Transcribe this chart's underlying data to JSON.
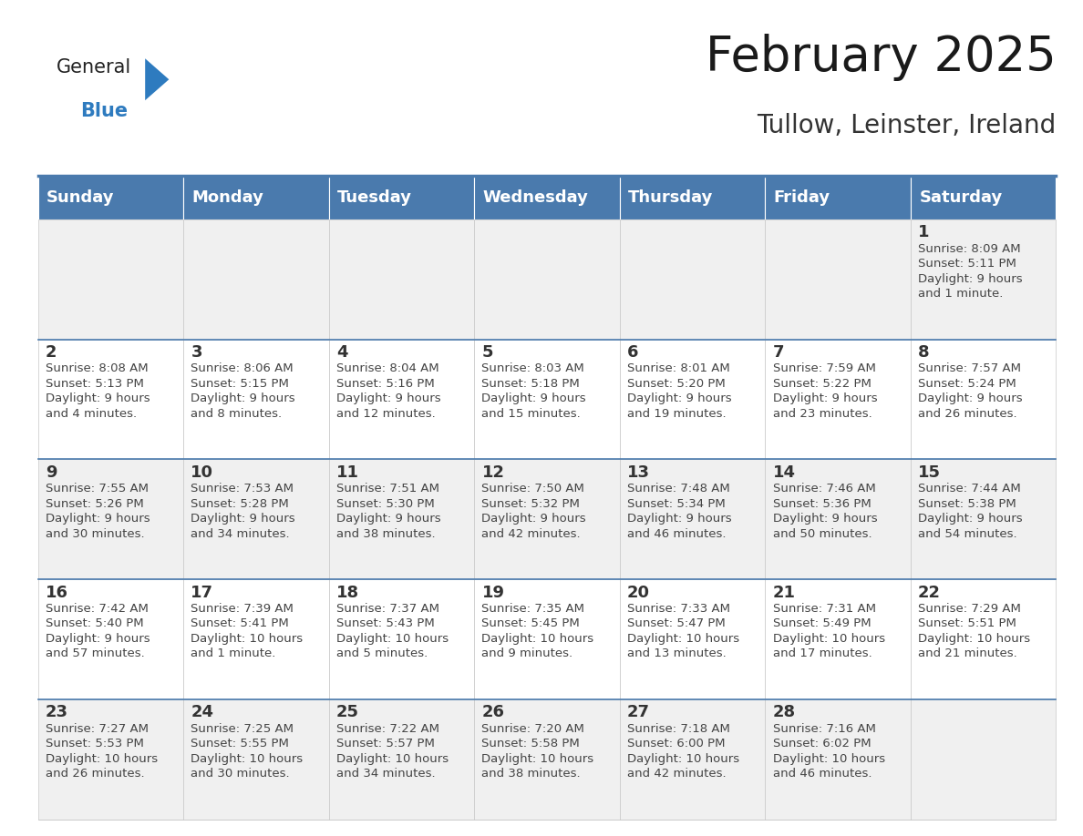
{
  "title": "February 2025",
  "subtitle": "Tullow, Leinster, Ireland",
  "header_color": "#4a7aad",
  "header_text_color": "#ffffff",
  "cell_bg_light": "#f0f0f0",
  "cell_bg_white": "#ffffff",
  "border_color": "#4a7aad",
  "cell_border_color": "#c8c8c8",
  "day_headers": [
    "Sunday",
    "Monday",
    "Tuesday",
    "Wednesday",
    "Thursday",
    "Friday",
    "Saturday"
  ],
  "title_fontsize": 38,
  "subtitle_fontsize": 20,
  "header_fontsize": 13,
  "day_num_fontsize": 13,
  "info_fontsize": 9.5,
  "logo_color": "#2e7bbf",
  "logo_dark_color": "#222222",
  "weeks": [
    [
      {
        "day": "",
        "info": ""
      },
      {
        "day": "",
        "info": ""
      },
      {
        "day": "",
        "info": ""
      },
      {
        "day": "",
        "info": ""
      },
      {
        "day": "",
        "info": ""
      },
      {
        "day": "",
        "info": ""
      },
      {
        "day": "1",
        "info": "Sunrise: 8:09 AM\nSunset: 5:11 PM\nDaylight: 9 hours\nand 1 minute."
      }
    ],
    [
      {
        "day": "2",
        "info": "Sunrise: 8:08 AM\nSunset: 5:13 PM\nDaylight: 9 hours\nand 4 minutes."
      },
      {
        "day": "3",
        "info": "Sunrise: 8:06 AM\nSunset: 5:15 PM\nDaylight: 9 hours\nand 8 minutes."
      },
      {
        "day": "4",
        "info": "Sunrise: 8:04 AM\nSunset: 5:16 PM\nDaylight: 9 hours\nand 12 minutes."
      },
      {
        "day": "5",
        "info": "Sunrise: 8:03 AM\nSunset: 5:18 PM\nDaylight: 9 hours\nand 15 minutes."
      },
      {
        "day": "6",
        "info": "Sunrise: 8:01 AM\nSunset: 5:20 PM\nDaylight: 9 hours\nand 19 minutes."
      },
      {
        "day": "7",
        "info": "Sunrise: 7:59 AM\nSunset: 5:22 PM\nDaylight: 9 hours\nand 23 minutes."
      },
      {
        "day": "8",
        "info": "Sunrise: 7:57 AM\nSunset: 5:24 PM\nDaylight: 9 hours\nand 26 minutes."
      }
    ],
    [
      {
        "day": "9",
        "info": "Sunrise: 7:55 AM\nSunset: 5:26 PM\nDaylight: 9 hours\nand 30 minutes."
      },
      {
        "day": "10",
        "info": "Sunrise: 7:53 AM\nSunset: 5:28 PM\nDaylight: 9 hours\nand 34 minutes."
      },
      {
        "day": "11",
        "info": "Sunrise: 7:51 AM\nSunset: 5:30 PM\nDaylight: 9 hours\nand 38 minutes."
      },
      {
        "day": "12",
        "info": "Sunrise: 7:50 AM\nSunset: 5:32 PM\nDaylight: 9 hours\nand 42 minutes."
      },
      {
        "day": "13",
        "info": "Sunrise: 7:48 AM\nSunset: 5:34 PM\nDaylight: 9 hours\nand 46 minutes."
      },
      {
        "day": "14",
        "info": "Sunrise: 7:46 AM\nSunset: 5:36 PM\nDaylight: 9 hours\nand 50 minutes."
      },
      {
        "day": "15",
        "info": "Sunrise: 7:44 AM\nSunset: 5:38 PM\nDaylight: 9 hours\nand 54 minutes."
      }
    ],
    [
      {
        "day": "16",
        "info": "Sunrise: 7:42 AM\nSunset: 5:40 PM\nDaylight: 9 hours\nand 57 minutes."
      },
      {
        "day": "17",
        "info": "Sunrise: 7:39 AM\nSunset: 5:41 PM\nDaylight: 10 hours\nand 1 minute."
      },
      {
        "day": "18",
        "info": "Sunrise: 7:37 AM\nSunset: 5:43 PM\nDaylight: 10 hours\nand 5 minutes."
      },
      {
        "day": "19",
        "info": "Sunrise: 7:35 AM\nSunset: 5:45 PM\nDaylight: 10 hours\nand 9 minutes."
      },
      {
        "day": "20",
        "info": "Sunrise: 7:33 AM\nSunset: 5:47 PM\nDaylight: 10 hours\nand 13 minutes."
      },
      {
        "day": "21",
        "info": "Sunrise: 7:31 AM\nSunset: 5:49 PM\nDaylight: 10 hours\nand 17 minutes."
      },
      {
        "day": "22",
        "info": "Sunrise: 7:29 AM\nSunset: 5:51 PM\nDaylight: 10 hours\nand 21 minutes."
      }
    ],
    [
      {
        "day": "23",
        "info": "Sunrise: 7:27 AM\nSunset: 5:53 PM\nDaylight: 10 hours\nand 26 minutes."
      },
      {
        "day": "24",
        "info": "Sunrise: 7:25 AM\nSunset: 5:55 PM\nDaylight: 10 hours\nand 30 minutes."
      },
      {
        "day": "25",
        "info": "Sunrise: 7:22 AM\nSunset: 5:57 PM\nDaylight: 10 hours\nand 34 minutes."
      },
      {
        "day": "26",
        "info": "Sunrise: 7:20 AM\nSunset: 5:58 PM\nDaylight: 10 hours\nand 38 minutes."
      },
      {
        "day": "27",
        "info": "Sunrise: 7:18 AM\nSunset: 6:00 PM\nDaylight: 10 hours\nand 42 minutes."
      },
      {
        "day": "28",
        "info": "Sunrise: 7:16 AM\nSunset: 6:02 PM\nDaylight: 10 hours\nand 46 minutes."
      },
      {
        "day": "",
        "info": ""
      }
    ]
  ]
}
